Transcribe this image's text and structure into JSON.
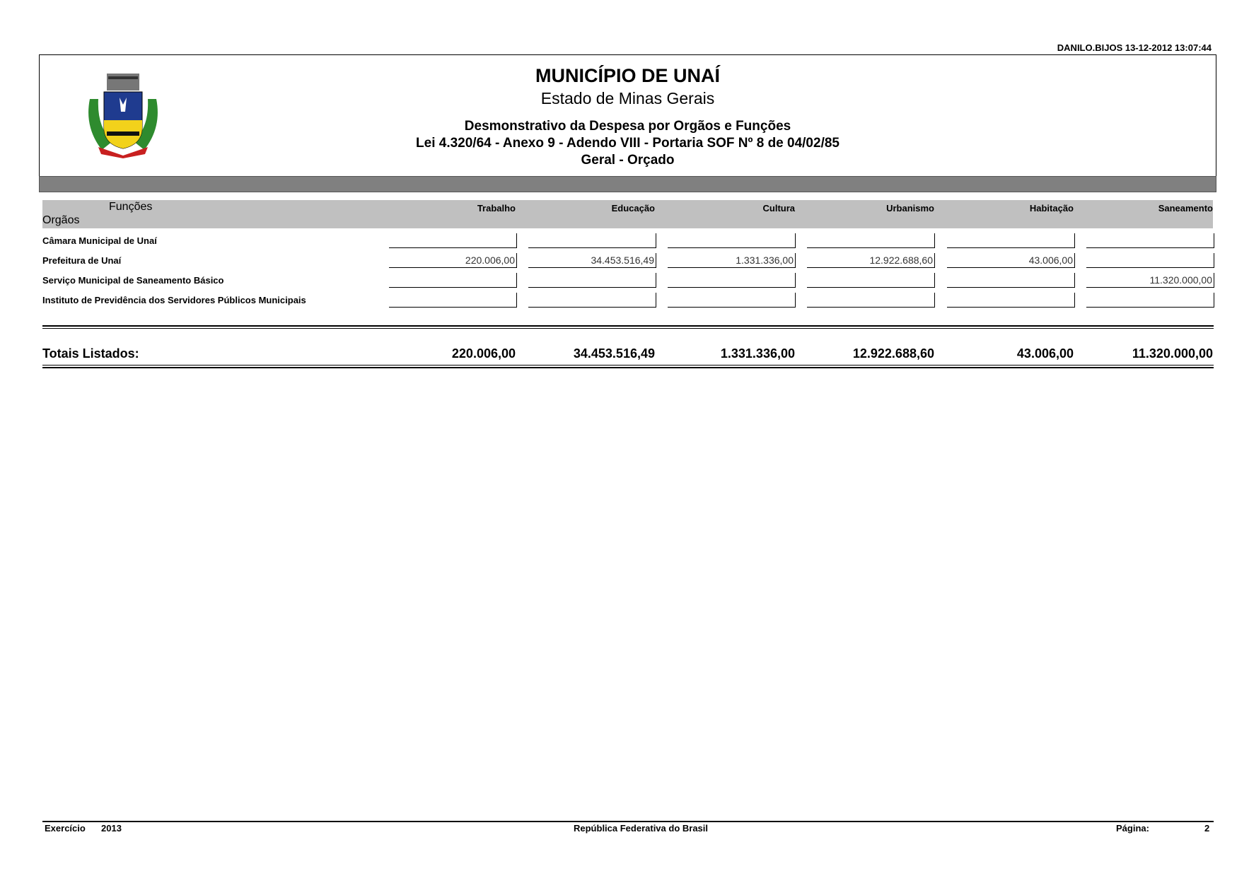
{
  "timestamp": "DANILO.BIJOS 13-12-2012 13:07:44",
  "header": {
    "title": "MUNICÍPIO DE UNAÍ",
    "state": "Estado de Minas Gerais",
    "report": "Desmonstrativo da Despesa por Orgãos e Funções",
    "law": "Lei 4.320/64 - Anexo 9 - Adendo VIII - Portaria SOF Nº 8 de 04/02/85",
    "scope": "Geral - Orçado"
  },
  "table": {
    "funcoes_label": "Funções",
    "orgaos_label": "Orgãos",
    "columns": [
      "Trabalho",
      "Educação",
      "Cultura",
      "Urbanismo",
      "Habitação",
      "Saneamento"
    ],
    "rows": [
      {
        "label": "Câmara Municipal de Unaí",
        "values": [
          "",
          "",
          "",
          "",
          "",
          ""
        ]
      },
      {
        "label": "Prefeitura de Unaí",
        "values": [
          "220.006,00",
          "34.453.516,49",
          "1.331.336,00",
          "12.922.688,60",
          "43.006,00",
          ""
        ]
      },
      {
        "label": "Serviço Municipal de Saneamento Básico",
        "values": [
          "",
          "",
          "",
          "",
          "",
          "11.320.000,00"
        ]
      },
      {
        "label": "Instituto de Previdência dos Servidores Públicos Municipais",
        "values": [
          "",
          "",
          "",
          "",
          "",
          ""
        ]
      }
    ],
    "totals_label": "Totais Listados:",
    "totals": [
      "220.006,00",
      "34.453.516,49",
      "1.331.336,00",
      "12.922.688,60",
      "43.006,00",
      "11.320.000,00"
    ]
  },
  "footer": {
    "exercicio_label": "Exercício",
    "exercicio": "2013",
    "center": "República Federativa do Brasil",
    "page_label": "Página:",
    "page": "2"
  }
}
